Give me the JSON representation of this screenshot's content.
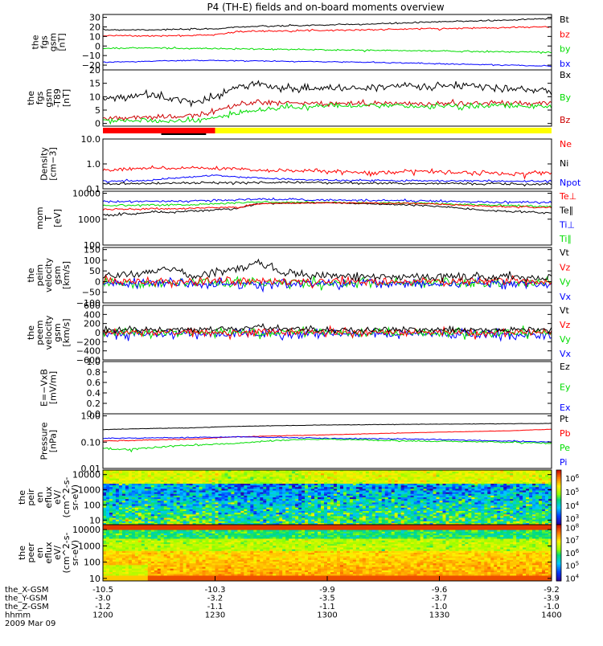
{
  "title": "P4 (TH-E) fields and on-board moments overview",
  "x_axis": {
    "ticks": [
      {
        "frac": 0.0,
        "vals": [
          "-10.5",
          "-3.0",
          "-1.2",
          "1200"
        ]
      },
      {
        "frac": 0.25,
        "vals": [
          "-10.3",
          "-3.2",
          "-1.1",
          "1230"
        ]
      },
      {
        "frac": 0.5,
        "vals": [
          "-9.9",
          "-3.5",
          "-1.1",
          "1300"
        ]
      },
      {
        "frac": 0.75,
        "vals": [
          "-9.6",
          "-3.7",
          "-1.0",
          "1330"
        ]
      },
      {
        "frac": 1.0,
        "vals": [
          "-9.2",
          "-3.9",
          "-1.0",
          "1400"
        ]
      }
    ],
    "row_labels": [
      "the_X-GSM",
      "the_Y-GSM",
      "the_Z-GSM",
      "hhmm"
    ],
    "date": "2009 Mar 09"
  },
  "status_bar": {
    "colors": [
      "#ff0000",
      "#ffff00"
    ],
    "split": 0.25
  },
  "colors": {
    "black": "#000000",
    "red": "#ff0000",
    "green": "#00dd00",
    "blue": "#0000ff"
  },
  "chart_data": [
    {
      "type": "line",
      "ylabel": [
        "the",
        "fgs",
        "gsm",
        "[nT]"
      ],
      "ylim": [
        -25,
        33
      ],
      "scale": "linear",
      "ticks": [
        {
          "v": 30,
          "l": "30"
        },
        {
          "v": 20,
          "l": "20"
        },
        {
          "v": 10,
          "l": "10"
        },
        {
          "v": 0,
          "l": "0"
        },
        {
          "v": -10,
          "l": "−10"
        },
        {
          "v": -20,
          "l": "−20"
        }
      ],
      "series": [
        {
          "name": "Bt",
          "color": "#000000",
          "x": [
            0,
            0.1,
            0.2,
            0.25,
            0.3,
            0.4,
            0.5,
            0.6,
            0.7,
            0.8,
            0.9,
            1.0
          ],
          "y": [
            17,
            17,
            17.5,
            18,
            20,
            21,
            22,
            23,
            24.5,
            26,
            27,
            29
          ],
          "noise": 0.4
        },
        {
          "name": "bz",
          "color": "#ff0000",
          "x": [
            0,
            0.1,
            0.2,
            0.25,
            0.3,
            0.4,
            0.5,
            0.6,
            0.7,
            0.8,
            0.9,
            1.0
          ],
          "y": [
            11,
            10.5,
            11,
            12,
            15,
            16,
            16.5,
            17,
            18,
            18.5,
            19.5,
            20
          ],
          "noise": 0.4
        },
        {
          "name": "by",
          "color": "#00dd00",
          "x": [
            0,
            0.1,
            0.2,
            0.3,
            0.4,
            0.5,
            0.6,
            0.7,
            0.8,
            0.9,
            1.0
          ],
          "y": [
            -2.5,
            -2,
            -2.5,
            -3,
            -3.5,
            -4,
            -4.5,
            -5,
            -5.5,
            -6,
            -6.5
          ],
          "noise": 0.4
        },
        {
          "name": "bx",
          "color": "#0000ff",
          "x": [
            0,
            0.1,
            0.2,
            0.3,
            0.4,
            0.5,
            0.6,
            0.7,
            0.8,
            0.9,
            1.0
          ],
          "y": [
            -17,
            -16,
            -15,
            -15.5,
            -16,
            -16.5,
            -17,
            -18,
            -19,
            -20,
            -21
          ],
          "noise": 0.3
        }
      ]
    },
    {
      "type": "line",
      "ylabel": [
        "the",
        "fgs",
        "gsm",
        "-T89",
        "[nT]"
      ],
      "ylim": [
        -1,
        20
      ],
      "scale": "linear",
      "ticks": [
        {
          "v": 20,
          "l": "20"
        },
        {
          "v": 15,
          "l": "15"
        },
        {
          "v": 10,
          "l": "10"
        },
        {
          "v": 5,
          "l": "5"
        },
        {
          "v": 0,
          "l": "0"
        }
      ],
      "legend": [
        "Bx",
        "By",
        "Bz"
      ],
      "series": [
        {
          "name": "Bx",
          "color": "#000000",
          "x": [
            0,
            0.05,
            0.1,
            0.15,
            0.2,
            0.25,
            0.3,
            0.35,
            0.4,
            0.5,
            0.6,
            0.7,
            0.8,
            0.9,
            1.0
          ],
          "y": [
            9,
            10,
            11,
            9,
            8,
            10,
            14,
            15,
            13,
            13,
            13.5,
            14,
            14,
            13,
            12
          ],
          "noise": 0.7
        },
        {
          "name": "Bz",
          "color": "#cc0000",
          "x": [
            0,
            0.05,
            0.1,
            0.15,
            0.2,
            0.25,
            0.3,
            0.35,
            0.4,
            0.5,
            0.6,
            0.7,
            0.8,
            0.9,
            1.0
          ],
          "y": [
            2,
            2,
            2,
            2.5,
            3,
            5,
            7,
            8,
            7.5,
            7.5,
            7.5,
            7.5,
            7.5,
            7.5,
            7.5
          ],
          "noise": 0.5
        },
        {
          "name": "By",
          "color": "#00dd00",
          "x": [
            0,
            0.1,
            0.2,
            0.25,
            0.3,
            0.35,
            0.4,
            0.5,
            0.6,
            0.7,
            0.8,
            0.9,
            1.0
          ],
          "y": [
            1,
            1,
            1,
            2,
            4,
            5,
            6,
            6.5,
            6.5,
            6.5,
            6.5,
            6.5,
            6.5
          ],
          "noise": 0.5
        }
      ]
    },
    {
      "type": "line",
      "ylabel": [
        "Density",
        "[cm−3]"
      ],
      "ylim": [
        0.1,
        10
      ],
      "scale": "log",
      "ticks": [
        {
          "v": 10,
          "l": "10.0"
        },
        {
          "v": 1,
          "l": "1.0"
        },
        {
          "v": 0.1,
          "l": "0.1"
        }
      ],
      "legend": [
        "Ne",
        "Ni",
        "Npot"
      ],
      "series": [
        {
          "name": "Ne",
          "color": "#ff0000",
          "x": [
            0,
            0.1,
            0.2,
            0.3,
            0.35,
            0.4,
            0.5,
            0.6,
            0.7,
            0.8,
            0.9,
            1.0
          ],
          "y": [
            0.55,
            0.7,
            0.7,
            0.65,
            0.5,
            0.55,
            0.5,
            0.45,
            0.5,
            0.45,
            0.4,
            0.45
          ],
          "noise": 0.05
        },
        {
          "name": "Npot",
          "color": "#0000ff",
          "x": [
            0,
            0.1,
            0.2,
            0.25,
            0.3,
            0.4,
            0.5,
            1.0
          ],
          "y": [
            0.2,
            0.22,
            0.3,
            0.35,
            0.3,
            0.25,
            0.22,
            0.2
          ],
          "noise": 0.01
        },
        {
          "name": "Ni",
          "color": "#000000",
          "x": [
            0,
            0.2,
            0.4,
            0.6,
            0.8,
            1.0
          ],
          "y": [
            0.16,
            0.17,
            0.18,
            0.17,
            0.16,
            0.16
          ],
          "noise": 0.01
        }
      ]
    },
    {
      "type": "line",
      "ylabel": [
        "mom",
        "T",
        "[eV]"
      ],
      "ylim": [
        100,
        12000
      ],
      "scale": "log",
      "ticks": [
        {
          "v": 10000,
          "l": "10000"
        },
        {
          "v": 1000,
          "l": "1000"
        },
        {
          "v": 100,
          "l": "100"
        }
      ],
      "legend": [
        "Te⊥",
        "Te∥",
        "Ti⊥",
        "Ti∥"
      ],
      "series": [
        {
          "name": "Ti⊥",
          "color": "#0000ff",
          "x": [
            0,
            0.2,
            0.35,
            0.5,
            0.7,
            0.85,
            1.0
          ],
          "y": [
            4800,
            5000,
            6000,
            5500,
            5200,
            4600,
            4400
          ],
          "noise": 250
        },
        {
          "name": "Ti∥",
          "color": "#00dd00",
          "x": [
            0,
            0.2,
            0.35,
            0.5,
            0.7,
            0.85,
            1.0
          ],
          "y": [
            3400,
            3600,
            4600,
            4400,
            4200,
            3600,
            3000
          ],
          "noise": 150
        },
        {
          "name": "Te∥",
          "color": "#000000",
          "x": [
            0,
            0.1,
            0.2,
            0.3,
            0.35,
            0.5,
            0.7,
            0.85,
            1.0
          ],
          "y": [
            1400,
            1800,
            2000,
            2600,
            4000,
            4300,
            3500,
            2200,
            1700
          ],
          "noise": 100
        },
        {
          "name": "Te⊥",
          "color": "#ff0000",
          "x": [
            0,
            0.2,
            0.3,
            0.35,
            0.5,
            0.7,
            0.85,
            1.0
          ],
          "y": [
            2400,
            2600,
            2900,
            4000,
            4300,
            4000,
            3200,
            2800
          ],
          "noise": 120
        }
      ]
    },
    {
      "type": "line",
      "ylabel": [
        "the",
        "peim",
        "velocity",
        "gsm",
        "[km/s]"
      ],
      "ylim": [
        -100,
        160
      ],
      "scale": "linear",
      "ticks": [
        {
          "v": 150,
          "l": "150"
        },
        {
          "v": 100,
          "l": "100"
        },
        {
          "v": 50,
          "l": "50"
        },
        {
          "v": 0,
          "l": "0"
        },
        {
          "v": -50,
          "l": "−50"
        },
        {
          "v": -100,
          "l": "−100"
        }
      ],
      "legend": [
        "Vt",
        "Vz",
        "Vy",
        "Vx"
      ],
      "series": [
        {
          "name": "Vy",
          "color": "#00dd00",
          "x": [
            0,
            1
          ],
          "y": [
            -8,
            -8
          ],
          "noise": 12
        },
        {
          "name": "Vx",
          "color": "#0000ff",
          "x": [
            0,
            1
          ],
          "y": [
            -10,
            -10
          ],
          "noise": 12
        },
        {
          "name": "Vz",
          "color": "#ff0000",
          "x": [
            0,
            1
          ],
          "y": [
            0,
            0
          ],
          "noise": 10
        },
        {
          "name": "Vt",
          "color": "#000000",
          "x": [
            0,
            0.1,
            0.15,
            0.2,
            0.3,
            0.35,
            0.4,
            0.5,
            0.7,
            1.0
          ],
          "y": [
            25,
            40,
            60,
            25,
            60,
            90,
            40,
            25,
            20,
            20
          ],
          "noise": 10
        }
      ]
    },
    {
      "type": "line",
      "ylabel": [
        "the",
        "peem",
        "velocity",
        "gsm",
        "[km/s]"
      ],
      "ylim": [
        -600,
        600
      ],
      "scale": "linear",
      "ticks": [
        {
          "v": 600,
          "l": "600"
        },
        {
          "v": 400,
          "l": "400"
        },
        {
          "v": 200,
          "l": "200"
        },
        {
          "v": 0,
          "l": "0"
        },
        {
          "v": -200,
          "l": "−200"
        },
        {
          "v": -400,
          "l": "−400"
        },
        {
          "v": -600,
          "l": "−600"
        }
      ],
      "legend": [
        "Vt",
        "Vz",
        "Vy",
        "Vx"
      ],
      "series": [
        {
          "name": "Vx",
          "color": "#0000ff",
          "x": [
            0,
            1
          ],
          "y": [
            -30,
            -30
          ],
          "noise": 50
        },
        {
          "name": "Vy",
          "color": "#00dd00",
          "x": [
            0,
            1
          ],
          "y": [
            0,
            0
          ],
          "noise": 45
        },
        {
          "name": "Vz",
          "color": "#ff0000",
          "x": [
            0,
            1
          ],
          "y": [
            10,
            10
          ],
          "noise": 45
        },
        {
          "name": "Vt",
          "color": "#000000",
          "x": [
            0,
            0.3,
            0.35,
            0.4,
            0.5,
            1.0
          ],
          "y": [
            60,
            80,
            140,
            90,
            60,
            70
          ],
          "noise": 35
        }
      ]
    },
    {
      "type": "line",
      "ylabel": [
        "E=−VxB",
        "[mV/m]"
      ],
      "ylim": [
        0,
        1
      ],
      "scale": "linear",
      "ticks": [
        {
          "v": 1.0,
          "l": "1.0"
        },
        {
          "v": 0.8,
          "l": "0.8"
        },
        {
          "v": 0.6,
          "l": "0.6"
        },
        {
          "v": 0.4,
          "l": "0.4"
        },
        {
          "v": 0.2,
          "l": "0.2"
        },
        {
          "v": 0.0,
          "l": "0.0"
        }
      ],
      "legend": [
        "Ez",
        "Ey",
        "Ex"
      ],
      "series": []
    },
    {
      "type": "line",
      "ylabel": [
        "Pressure",
        "[nPa]"
      ],
      "ylim": [
        0.01,
        1.2
      ],
      "scale": "log",
      "ticks": [
        {
          "v": 1,
          "l": "1.00"
        },
        {
          "v": 0.1,
          "l": "0.10"
        },
        {
          "v": 0.01,
          "l": "0.01"
        }
      ],
      "legend": [
        "Pt",
        "Pb",
        "Pe",
        "Pi"
      ],
      "series": [
        {
          "name": "Pt",
          "color": "#000000",
          "x": [
            0,
            0.1,
            0.2,
            0.3,
            0.5,
            0.7,
            0.9,
            1.0
          ],
          "y": [
            0.3,
            0.33,
            0.35,
            0.4,
            0.45,
            0.48,
            0.5,
            0.52
          ],
          "noise": 0.004
        },
        {
          "name": "Pb",
          "color": "#ff0000",
          "x": [
            0,
            0.1,
            0.2,
            0.3,
            0.5,
            0.7,
            0.9,
            1.0
          ],
          "y": [
            0.11,
            0.12,
            0.13,
            0.16,
            0.19,
            0.23,
            0.27,
            0.31
          ],
          "noise": 0.002
        },
        {
          "name": "Pi",
          "color": "#0000ff",
          "x": [
            0,
            0.2,
            0.3,
            0.5,
            0.7,
            0.9,
            1.0
          ],
          "y": [
            0.14,
            0.15,
            0.16,
            0.14,
            0.13,
            0.11,
            0.1
          ],
          "noise": 0.003
        },
        {
          "name": "Pe",
          "color": "#00dd00",
          "x": [
            0,
            0.05,
            0.15,
            0.3,
            0.4,
            0.5,
            0.7,
            0.9,
            1.0
          ],
          "y": [
            0.06,
            0.05,
            0.07,
            0.09,
            0.12,
            0.13,
            0.11,
            0.1,
            0.09
          ],
          "noise": 0.003
        }
      ]
    },
    {
      "type": "heatmap",
      "ylabel": [
        "the",
        "peir",
        "en",
        "eflux",
        "eV/",
        "(cm^2-s-",
        "sr-eV)"
      ],
      "ylim": [
        5,
        20000
      ],
      "scale": "log",
      "ticks": [
        {
          "v": 10000,
          "l": "10000"
        },
        {
          "v": 1000,
          "l": "1000"
        },
        {
          "v": 100,
          "l": "100"
        },
        {
          "v": 10,
          "l": "10"
        }
      ],
      "colorbar": {
        "ticks": [
          {
            "l": "10^6",
            "f": 0.85
          },
          {
            "l": "10^5",
            "f": 0.6
          },
          {
            "l": "10^4",
            "f": 0.35
          },
          {
            "l": "10^3",
            "f": 0.12
          }
        ]
      },
      "variant": "ion"
    },
    {
      "type": "heatmap",
      "ylabel": [
        "the",
        "peer",
        "en",
        "eflux",
        "eV/",
        "(cm^2-s-",
        "sr-eV)"
      ],
      "ylim": [
        7,
        20000
      ],
      "scale": "log",
      "ticks": [
        {
          "v": 10000,
          "l": "10000"
        },
        {
          "v": 1000,
          "l": "1000"
        },
        {
          "v": 100,
          "l": "100"
        },
        {
          "v": 10,
          "l": "10"
        }
      ],
      "colorbar": {
        "ticks": [
          {
            "l": "10^8",
            "f": 0.95
          },
          {
            "l": "10^7",
            "f": 0.73
          },
          {
            "l": "10^6",
            "f": 0.5
          },
          {
            "l": "10^5",
            "f": 0.28
          },
          {
            "l": "10^4",
            "f": 0.05
          }
        ]
      },
      "variant": "electron"
    }
  ]
}
